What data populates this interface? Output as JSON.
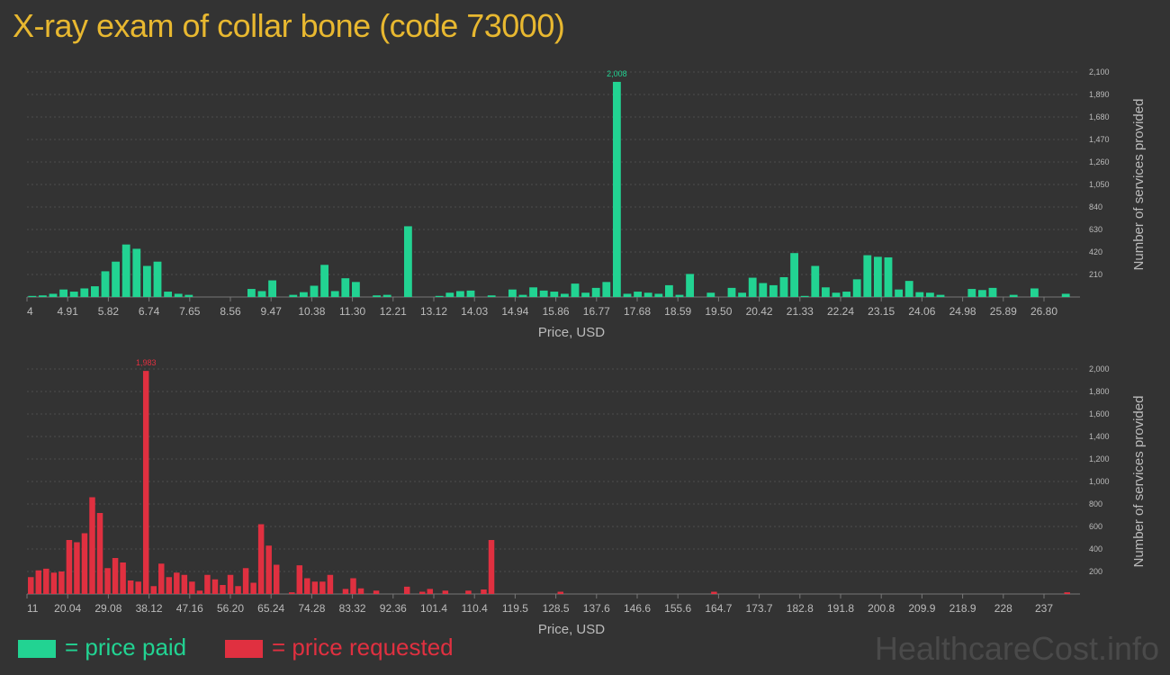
{
  "title": "X-ray exam of collar bone (code 73000)",
  "legend": {
    "paid_label": "= price paid",
    "requested_label": "= price requested",
    "paid_color": "#22d392",
    "requested_color": "#e03040"
  },
  "brand": "HealthcareCost.info",
  "chart_data": [
    {
      "type": "bar",
      "xlabel": "Price, USD",
      "ylabel": "Number of services provided",
      "color": "#22d392",
      "x_tick_labels": [
        "4",
        "4.91",
        "5.82",
        "6.74",
        "7.65",
        "8.56",
        "9.47",
        "10.38",
        "11.30",
        "12.21",
        "13.12",
        "14.03",
        "14.94",
        "15.86",
        "16.77",
        "17.68",
        "18.59",
        "19.50",
        "20.42",
        "21.33",
        "22.24",
        "23.15",
        "24.06",
        "24.98",
        "25.89",
        "26.80"
      ],
      "x_range": [
        4,
        26.8
      ],
      "y_ticks": [
        "210",
        "420",
        "630",
        "840",
        "1,050",
        "1,260",
        "1,470",
        "1,680",
        "1,890",
        "2,100"
      ],
      "ylim": [
        0,
        2100
      ],
      "peak_label": "2,008",
      "values": [
        10,
        15,
        30,
        70,
        50,
        80,
        100,
        240,
        330,
        490,
        450,
        290,
        330,
        50,
        30,
        20,
        0,
        0,
        0,
        0,
        0,
        75,
        55,
        155,
        0,
        20,
        45,
        105,
        300,
        55,
        175,
        140,
        0,
        15,
        20,
        0,
        660,
        0,
        0,
        10,
        40,
        55,
        60,
        0,
        15,
        0,
        70,
        20,
        90,
        60,
        50,
        30,
        125,
        40,
        85,
        140,
        2008,
        30,
        50,
        40,
        30,
        110,
        20,
        215,
        0,
        40,
        0,
        85,
        40,
        180,
        130,
        110,
        185,
        410,
        10,
        290,
        90,
        40,
        50,
        165,
        390,
        375,
        370,
        70,
        150,
        45,
        40,
        20,
        0,
        0,
        75,
        65,
        85,
        0,
        20,
        0,
        80,
        0,
        0,
        30
      ]
    },
    {
      "type": "bar",
      "xlabel": "Price, USD",
      "ylabel": "Number of services provided",
      "color": "#e03040",
      "x_tick_labels": [
        "11",
        "20.04",
        "29.08",
        "38.12",
        "47.16",
        "56.20",
        "65.24",
        "74.28",
        "83.32",
        "92.36",
        "101.4",
        "110.4",
        "119.5",
        "128.5",
        "137.6",
        "146.6",
        "155.6",
        "164.7",
        "173.7",
        "182.8",
        "191.8",
        "200.8",
        "209.9",
        "218.9",
        "228",
        "237"
      ],
      "x_range": [
        11,
        237
      ],
      "y_ticks": [
        "200",
        "400",
        "600",
        "800",
        "1,000",
        "1,200",
        "1,400",
        "1,600",
        "1,800",
        "2,000"
      ],
      "ylim": [
        0,
        2000
      ],
      "peak_label": "1,983",
      "values": [
        150,
        210,
        225,
        190,
        200,
        480,
        460,
        540,
        860,
        720,
        230,
        320,
        280,
        120,
        110,
        1983,
        70,
        270,
        150,
        190,
        170,
        110,
        30,
        170,
        130,
        80,
        170,
        70,
        230,
        100,
        620,
        430,
        260,
        0,
        15,
        255,
        140,
        110,
        110,
        170,
        0,
        45,
        140,
        50,
        0,
        30,
        0,
        0,
        0,
        65,
        0,
        20,
        45,
        0,
        30,
        0,
        0,
        30,
        0,
        40,
        480,
        0,
        0,
        0,
        0,
        0,
        0,
        0,
        0,
        20,
        0,
        0,
        0,
        0,
        0,
        0,
        0,
        0,
        0,
        0,
        0,
        0,
        0,
        0,
        0,
        0,
        0,
        0,
        0,
        20,
        0,
        0,
        0,
        0,
        0,
        0,
        0,
        0,
        0,
        0,
        0,
        0,
        0,
        0,
        0,
        0,
        0,
        0,
        0,
        0,
        0,
        0,
        0,
        0,
        0,
        0,
        0,
        0,
        0,
        0,
        0,
        0,
        0,
        0,
        0,
        0,
        0,
        0,
        0,
        0,
        0,
        0,
        0,
        0,
        0,
        15
      ]
    }
  ]
}
